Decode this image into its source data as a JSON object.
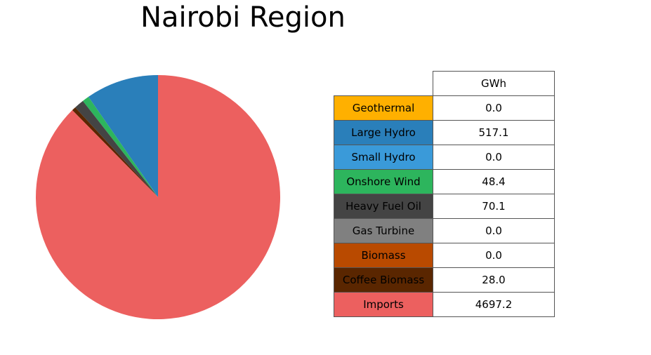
{
  "chart_data": {
    "type": "pie",
    "title": "Nairobi Region",
    "table_header": "GWh",
    "slices": [
      {
        "name": "Geothermal",
        "value": 0.0,
        "display": "0.0",
        "color": "#ffb000"
      },
      {
        "name": "Large Hydro",
        "value": 517.1,
        "display": "517.1",
        "color": "#2a7fba"
      },
      {
        "name": "Small Hydro",
        "value": 0.0,
        "display": "0.0",
        "color": "#3a9ad9"
      },
      {
        "name": "Onshore Wind",
        "value": 48.4,
        "display": "48.4",
        "color": "#2db55d"
      },
      {
        "name": "Heavy Fuel Oil",
        "value": 70.1,
        "display": "70.1",
        "color": "#444444"
      },
      {
        "name": "Gas Turbine",
        "value": 0.0,
        "display": "0.0",
        "color": "#808080"
      },
      {
        "name": "Biomass",
        "value": 0.0,
        "display": "0.0",
        "color": "#b94a00"
      },
      {
        "name": "Coffee Biomass",
        "value": 28.0,
        "display": "28.0",
        "color": "#5a2600"
      },
      {
        "name": "Imports",
        "value": 4697.2,
        "display": "4697.2",
        "color": "#ec605f"
      }
    ],
    "start_angle": "top",
    "direction": "counterclockwise",
    "legend": "table-right"
  }
}
